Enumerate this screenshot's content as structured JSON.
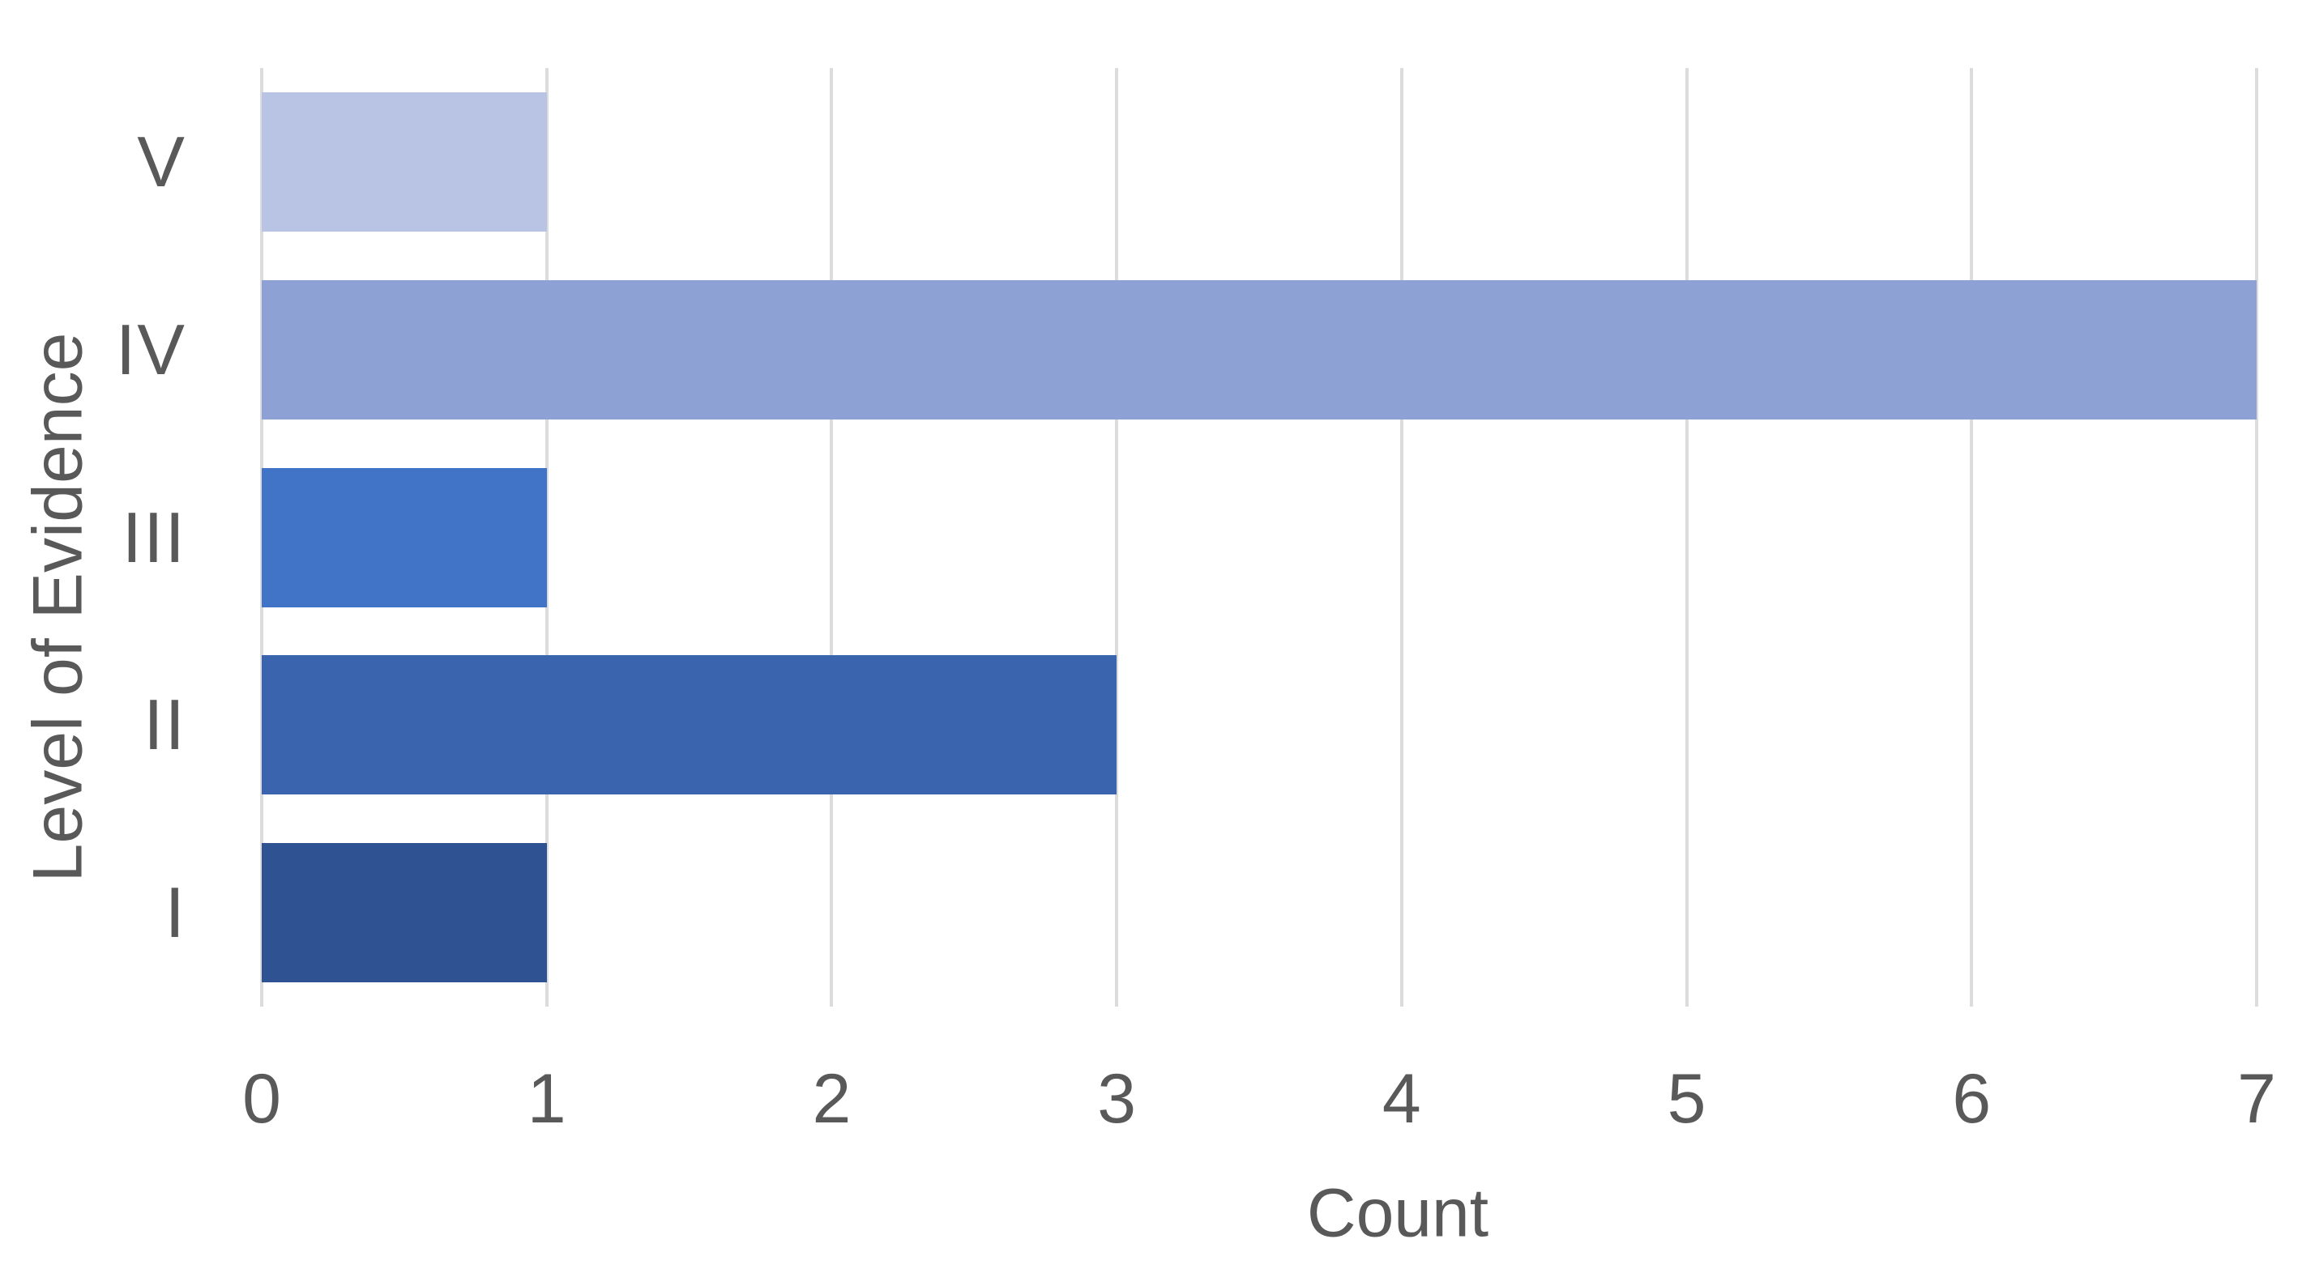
{
  "chart_data": {
    "type": "bar",
    "orientation": "horizontal",
    "title": "",
    "xlabel": "Count",
    "ylabel": "Level of Evidence",
    "categories": [
      "V",
      "IV",
      "III",
      "II",
      "I"
    ],
    "values": [
      1,
      7,
      1,
      3,
      1
    ],
    "bar_colors": [
      "#b9c3e3",
      "#8ea1d5",
      "#4173c6",
      "#3a64ad",
      "#2f5292"
    ],
    "xlim": [
      0,
      7
    ],
    "xticks": [
      0,
      1,
      2,
      3,
      4,
      5,
      6,
      7
    ],
    "grid": "vertical-gridlines-on",
    "legend": "none",
    "gridline_color": "#dcdcdc",
    "text_color": "#595959",
    "background_color": "#ffffff"
  }
}
